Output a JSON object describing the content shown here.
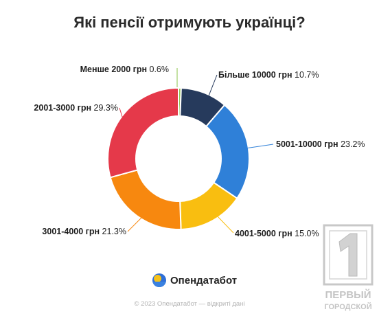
{
  "title": "Які пенсії отримують українці?",
  "brand": {
    "name": "Опендатабот",
    "logo_icon": "opendatabot-logo-icon"
  },
  "footer": "© 2023 Опендатабот — відкриті дані",
  "watermark": {
    "line1": "ПЕРВЫЙ",
    "line2": "ГОРОДСКОЙ"
  },
  "chart_data": {
    "type": "pie",
    "style": "donut",
    "title": "Які пенсії отримують українці?",
    "unit": "%",
    "slices": [
      {
        "label": "Менше 2000 грн",
        "value": 0.6,
        "color": "#8bc34a"
      },
      {
        "label": "Більше 10000 грн",
        "value": 10.7,
        "color": "#263a5c"
      },
      {
        "label": "5001-10000 грн",
        "value": 23.2,
        "color": "#2f80d8"
      },
      {
        "label": "4001-5000 грн",
        "value": 15.0,
        "color": "#f9be10"
      },
      {
        "label": "3001-4000 грн",
        "value": 21.3,
        "color": "#f7880f"
      },
      {
        "label": "2001-3000 грн",
        "value": 29.3,
        "color": "#e5394a"
      }
    ]
  }
}
